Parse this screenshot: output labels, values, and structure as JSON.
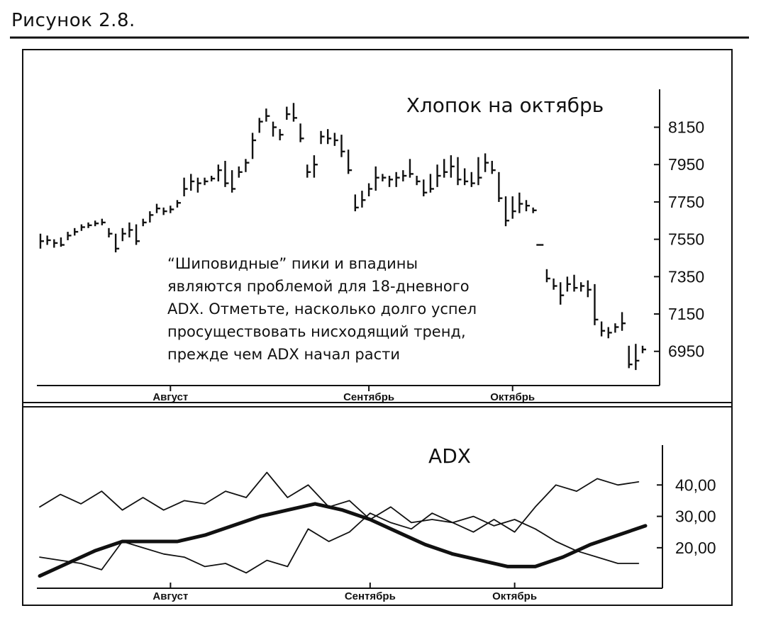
{
  "figure_caption": "Рисунок 2.8.",
  "chart_data": [
    {
      "type": "bar",
      "subtype": "ohlc",
      "title": "Хлопок на октябрь",
      "ylim": [
        6820,
        8300
      ],
      "yticks": [
        8150,
        7950,
        7750,
        7550,
        7350,
        7150,
        6950
      ],
      "ytick_labels": [
        "8150",
        "7950",
        "7750",
        "7550",
        "7350",
        "7150",
        "6950"
      ],
      "months": [
        {
          "label": "Август",
          "bar_index": 19
        },
        {
          "label": "Сентябрь",
          "bar_index": 48
        },
        {
          "label": "Октябрь",
          "bar_index": 69
        }
      ],
      "bars": [
        {
          "h": 7580,
          "l": 7500,
          "c": 7540
        },
        {
          "h": 7570,
          "l": 7520,
          "c": 7545
        },
        {
          "h": 7550,
          "l": 7505,
          "c": 7530
        },
        {
          "h": 7560,
          "l": 7510,
          "c": 7520
        },
        {
          "h": 7590,
          "l": 7545,
          "c": 7570
        },
        {
          "h": 7610,
          "l": 7570,
          "c": 7590
        },
        {
          "h": 7630,
          "l": 7595,
          "c": 7615
        },
        {
          "h": 7640,
          "l": 7610,
          "c": 7625
        },
        {
          "h": 7650,
          "l": 7620,
          "c": 7635
        },
        {
          "h": 7660,
          "l": 7625,
          "c": 7640
        },
        {
          "h": 7610,
          "l": 7560,
          "c": 7580
        },
        {
          "h": 7580,
          "l": 7480,
          "c": 7500
        },
        {
          "h": 7610,
          "l": 7540,
          "c": 7580
        },
        {
          "h": 7640,
          "l": 7560,
          "c": 7600
        },
        {
          "h": 7630,
          "l": 7520,
          "c": 7540
        },
        {
          "h": 7660,
          "l": 7620,
          "c": 7640
        },
        {
          "h": 7700,
          "l": 7640,
          "c": 7680
        },
        {
          "h": 7740,
          "l": 7690,
          "c": 7715
        },
        {
          "h": 7720,
          "l": 7680,
          "c": 7700
        },
        {
          "h": 7730,
          "l": 7690,
          "c": 7710
        },
        {
          "h": 7760,
          "l": 7720,
          "c": 7745
        },
        {
          "h": 7880,
          "l": 7780,
          "c": 7820
        },
        {
          "h": 7900,
          "l": 7810,
          "c": 7860
        },
        {
          "h": 7880,
          "l": 7800,
          "c": 7850
        },
        {
          "h": 7880,
          "l": 7840,
          "c": 7860
        },
        {
          "h": 7890,
          "l": 7860,
          "c": 7875
        },
        {
          "h": 7950,
          "l": 7860,
          "c": 7920
        },
        {
          "h": 7970,
          "l": 7830,
          "c": 7850
        },
        {
          "h": 7920,
          "l": 7800,
          "c": 7820
        },
        {
          "h": 7940,
          "l": 7880,
          "c": 7910
        },
        {
          "h": 7980,
          "l": 7910,
          "c": 7960
        },
        {
          "h": 8120,
          "l": 7980,
          "c": 8080
        },
        {
          "h": 8200,
          "l": 8120,
          "c": 8180
        },
        {
          "h": 8250,
          "l": 8180,
          "c": 8210
        },
        {
          "h": 8180,
          "l": 8100,
          "c": 8150
        },
        {
          "h": 8140,
          "l": 8080,
          "c": 8110
        },
        {
          "h": 8260,
          "l": 8190,
          "c": 8220
        },
        {
          "h": 8280,
          "l": 8180,
          "c": 8200
        },
        {
          "h": 8170,
          "l": 8070,
          "c": 8090
        },
        {
          "h": 7950,
          "l": 7880,
          "c": 7910
        },
        {
          "h": 8000,
          "l": 7880,
          "c": 7950
        },
        {
          "h": 8130,
          "l": 8060,
          "c": 8100
        },
        {
          "h": 8140,
          "l": 8060,
          "c": 8090
        },
        {
          "h": 8120,
          "l": 8050,
          "c": 8080
        },
        {
          "h": 8110,
          "l": 7990,
          "c": 8020
        },
        {
          "h": 8030,
          "l": 7900,
          "c": 7920
        },
        {
          "h": 7790,
          "l": 7700,
          "c": 7720
        },
        {
          "h": 7810,
          "l": 7720,
          "c": 7760
        },
        {
          "h": 7850,
          "l": 7780,
          "c": 7820
        },
        {
          "h": 7940,
          "l": 7810,
          "c": 7880
        },
        {
          "h": 7900,
          "l": 7860,
          "c": 7880
        },
        {
          "h": 7890,
          "l": 7830,
          "c": 7870
        },
        {
          "h": 7910,
          "l": 7830,
          "c": 7880
        },
        {
          "h": 7920,
          "l": 7860,
          "c": 7890
        },
        {
          "h": 7980,
          "l": 7880,
          "c": 7900
        },
        {
          "h": 7890,
          "l": 7840,
          "c": 7860
        },
        {
          "h": 7870,
          "l": 7780,
          "c": 7800
        },
        {
          "h": 7900,
          "l": 7800,
          "c": 7820
        },
        {
          "h": 7950,
          "l": 7830,
          "c": 7890
        },
        {
          "h": 7980,
          "l": 7880,
          "c": 7910
        },
        {
          "h": 8000,
          "l": 7880,
          "c": 7940
        },
        {
          "h": 7990,
          "l": 7840,
          "c": 7870
        },
        {
          "h": 7930,
          "l": 7840,
          "c": 7860
        },
        {
          "h": 7910,
          "l": 7830,
          "c": 7850
        },
        {
          "h": 7990,
          "l": 7840,
          "c": 7880
        },
        {
          "h": 8010,
          "l": 7910,
          "c": 7960
        },
        {
          "h": 7970,
          "l": 7900,
          "c": 7920
        },
        {
          "h": 7910,
          "l": 7750,
          "c": 7770
        },
        {
          "h": 7780,
          "l": 7620,
          "c": 7650
        },
        {
          "h": 7780,
          "l": 7660,
          "c": 7700
        },
        {
          "h": 7800,
          "l": 7690,
          "c": 7740
        },
        {
          "h": 7760,
          "l": 7700,
          "c": 7730
        },
        {
          "h": 7720,
          "l": 7690,
          "c": 7705
        },
        {
          "h": 7520,
          "l": 7520,
          "c": 7520
        },
        {
          "h": 7390,
          "l": 7320,
          "c": 7340
        },
        {
          "h": 7340,
          "l": 7280,
          "c": 7300
        },
        {
          "h": 7320,
          "l": 7200,
          "c": 7250
        },
        {
          "h": 7350,
          "l": 7270,
          "c": 7310
        },
        {
          "h": 7360,
          "l": 7270,
          "c": 7290
        },
        {
          "h": 7320,
          "l": 7270,
          "c": 7300
        },
        {
          "h": 7330,
          "l": 7240,
          "c": 7280
        },
        {
          "h": 7310,
          "l": 7090,
          "c": 7120
        },
        {
          "h": 7110,
          "l": 7030,
          "c": 7060
        },
        {
          "h": 7080,
          "l": 7020,
          "c": 7050
        },
        {
          "h": 7100,
          "l": 7050,
          "c": 7080
        },
        {
          "h": 7160,
          "l": 7060,
          "c": 7100
        },
        {
          "h": 6980,
          "l": 6860,
          "c": 6880
        },
        {
          "h": 6990,
          "l": 6850,
          "c": 6900
        },
        {
          "h": 6980,
          "l": 6940,
          "c": 6960
        }
      ]
    },
    {
      "type": "line",
      "title": "ADX",
      "ylim": [
        8,
        50
      ],
      "yticks": [
        40,
        30,
        20
      ],
      "ytick_labels": [
        "40,00",
        "30,00",
        "20,00"
      ],
      "months": [
        {
          "label": "Август",
          "x": 19
        },
        {
          "label": "Сентябрь",
          "x": 48
        },
        {
          "label": "Октябрь",
          "x": 69
        }
      ],
      "series": [
        {
          "style": "thick",
          "x": [
            0,
            4,
            8,
            12,
            16,
            20,
            24,
            28,
            32,
            36,
            40,
            44,
            48,
            52,
            56,
            60,
            64,
            68,
            72,
            76,
            80,
            84,
            88
          ],
          "values": [
            11,
            15,
            19,
            22,
            22,
            22,
            24,
            27,
            30,
            32,
            34,
            32,
            29,
            25,
            21,
            18,
            16,
            14,
            14,
            17,
            21,
            24,
            27
          ]
        },
        {
          "style": "thin",
          "x": [
            0,
            3,
            6,
            9,
            12,
            15,
            18,
            21,
            24,
            27,
            30,
            33,
            36,
            39,
            42,
            45,
            48,
            51,
            54,
            57,
            60,
            63,
            66,
            69,
            72,
            75,
            78,
            81,
            84,
            87
          ],
          "values": [
            33,
            37,
            34,
            38,
            32,
            36,
            32,
            35,
            34,
            38,
            36,
            44,
            36,
            40,
            33,
            35,
            29,
            33,
            28,
            29,
            28,
            25,
            29,
            25,
            33,
            40,
            38,
            42,
            40,
            41
          ]
        },
        {
          "style": "thin",
          "x": [
            0,
            3,
            6,
            9,
            12,
            15,
            18,
            21,
            24,
            27,
            30,
            33,
            36,
            39,
            42,
            45,
            48,
            51,
            54,
            57,
            60,
            63,
            66,
            69,
            72,
            75,
            78,
            81,
            84,
            87
          ],
          "values": [
            17,
            16,
            15,
            13,
            22,
            20,
            18,
            17,
            14,
            15,
            12,
            16,
            14,
            26,
            22,
            25,
            31,
            28,
            26,
            31,
            28,
            30,
            27,
            29,
            26,
            22,
            19,
            17,
            15,
            15
          ]
        }
      ]
    }
  ],
  "annotation": {
    "lines": [
      "“Шиповидные” пики и впадины",
      "являются проблемой для 18-дневного",
      "ADX. Отметьте, насколько долго успел",
      "просуществовать нисходящий тренд,",
      "прежде чем ADX начал расти"
    ]
  }
}
